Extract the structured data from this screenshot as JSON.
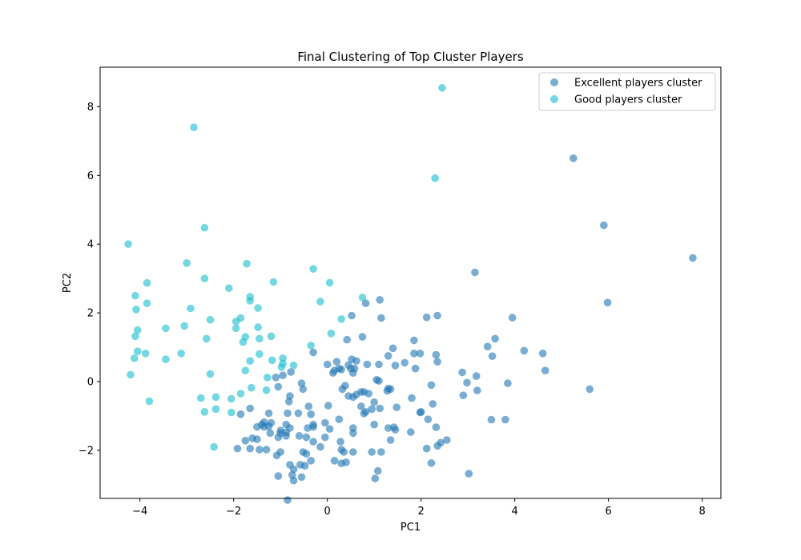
{
  "chart_data": {
    "type": "scatter",
    "title": "Final Clustering of Top Cluster Players",
    "xlabel": "PC1",
    "ylabel": "PC2",
    "xlim": [
      -4.85,
      8.4
    ],
    "ylim": [
      -3.4,
      9.15
    ],
    "xticks": [
      -4,
      -2,
      0,
      2,
      4,
      6,
      8
    ],
    "yticks": [
      -2,
      0,
      2,
      4,
      6,
      8
    ],
    "xtick_labels": [
      "−4",
      "−2",
      "0",
      "2",
      "4",
      "6",
      "8"
    ],
    "ytick_labels": [
      "−2",
      "0",
      "2",
      "4",
      "6",
      "8"
    ],
    "grid": false,
    "legend_position": "upper right",
    "series": [
      {
        "name": "Excellent players cluster",
        "color": "#1f77b4",
        "points": [
          [
            5.25,
            6.5
          ],
          [
            5.9,
            4.55
          ],
          [
            7.8,
            3.6
          ],
          [
            5.98,
            2.3
          ],
          [
            3.15,
            3.18
          ],
          [
            5.6,
            -0.22
          ],
          [
            4.6,
            0.82
          ],
          [
            4.65,
            0.32
          ],
          [
            4.2,
            0.9
          ],
          [
            3.95,
            1.86
          ],
          [
            3.58,
            1.25
          ],
          [
            3.42,
            1.02
          ],
          [
            3.52,
            0.74
          ],
          [
            3.18,
            0.16
          ],
          [
            3.2,
            -0.26
          ],
          [
            2.98,
            -0.03
          ],
          [
            2.88,
            0.27
          ],
          [
            2.9,
            -0.4
          ],
          [
            3.85,
            -0.05
          ],
          [
            3.8,
            -1.11
          ],
          [
            3.5,
            -1.11
          ],
          [
            3.02,
            -2.68
          ],
          [
            2.35,
            1.92
          ],
          [
            2.12,
            1.87
          ],
          [
            2.32,
            0.78
          ],
          [
            2.35,
            0.58
          ],
          [
            2.22,
            -0.1
          ],
          [
            2.25,
            -0.65
          ],
          [
            2.15,
            -1.1
          ],
          [
            2.0,
            -0.88
          ],
          [
            1.98,
            -0.9
          ],
          [
            1.98,
            0.82
          ],
          [
            1.85,
            1.2
          ],
          [
            1.85,
            0.82
          ],
          [
            1.88,
            0.38
          ],
          [
            1.65,
            0.55
          ],
          [
            1.8,
            -0.48
          ],
          [
            1.78,
            -1.47
          ],
          [
            2.32,
            -1.33
          ],
          [
            2.12,
            -1.95
          ],
          [
            2.35,
            -1.87
          ],
          [
            2.42,
            -1.78
          ],
          [
            2.55,
            -1.7
          ],
          [
            2.22,
            -2.37
          ],
          [
            1.12,
            2.38
          ],
          [
            1.15,
            1.85
          ],
          [
            1.4,
            0.97
          ],
          [
            1.3,
            0.75
          ],
          [
            1.45,
            0.47
          ],
          [
            1.1,
            0.5
          ],
          [
            1.05,
            0.05
          ],
          [
            1.1,
            0.02
          ],
          [
            1.3,
            -0.2
          ],
          [
            1.35,
            -0.22
          ],
          [
            1.28,
            -0.27
          ],
          [
            1.48,
            -0.75
          ],
          [
            1.0,
            -0.6
          ],
          [
            0.95,
            -0.8
          ],
          [
            1.12,
            -0.78
          ],
          [
            1.3,
            -1.35
          ],
          [
            1.42,
            -1.33
          ],
          [
            1.45,
            -1.4
          ],
          [
            1.35,
            -1.7
          ],
          [
            1.0,
            -1.25
          ],
          [
            1.15,
            -2.05
          ],
          [
            1.08,
            -2.6
          ],
          [
            1.02,
            -2.82
          ],
          [
            0.82,
            2.28
          ],
          [
            0.75,
            1.3
          ],
          [
            0.42,
            1.22
          ],
          [
            0.52,
            0.65
          ],
          [
            0.62,
            0.6
          ],
          [
            0.85,
            0.5
          ],
          [
            0.45,
            0.48
          ],
          [
            0.5,
            0.38
          ],
          [
            0.58,
            0.38
          ],
          [
            0.55,
            0.25
          ],
          [
            0.3,
            0.35
          ],
          [
            0.25,
            0.38
          ],
          [
            0.2,
            0.58
          ],
          [
            0.15,
            0.32
          ],
          [
            0.12,
            0.25
          ],
          [
            0.38,
            -0.12
          ],
          [
            0.32,
            -0.22
          ],
          [
            0.45,
            -0.42
          ],
          [
            0.55,
            -0.45
          ],
          [
            0.62,
            -0.38
          ],
          [
            0.72,
            -0.3
          ],
          [
            0.78,
            -0.3
          ],
          [
            0.88,
            -0.35
          ],
          [
            0.72,
            -0.72
          ],
          [
            0.78,
            -0.93
          ],
          [
            0.82,
            -0.88
          ],
          [
            0.52,
            1.92
          ],
          [
            0.0,
            0.5
          ],
          [
            -0.3,
            0.85
          ],
          [
            0.02,
            -0.7
          ],
          [
            0.25,
            -1.1
          ],
          [
            -0.05,
            -1.2
          ],
          [
            0.05,
            -1.38
          ],
          [
            0.55,
            -1.35
          ],
          [
            0.55,
            -1.5
          ],
          [
            -0.05,
            -1.62
          ],
          [
            0.28,
            -1.75
          ],
          [
            -0.3,
            -1.75
          ],
          [
            -0.15,
            -1.9
          ],
          [
            0.3,
            -1.98
          ],
          [
            0.35,
            -2.05
          ],
          [
            0.55,
            -2.05
          ],
          [
            0.15,
            -2.3
          ],
          [
            0.3,
            -2.38
          ],
          [
            0.4,
            -2.35
          ],
          [
            0.95,
            -2.05
          ],
          [
            -0.4,
            -0.72
          ],
          [
            -0.35,
            -0.95
          ],
          [
            -0.8,
            -0.42
          ],
          [
            -0.82,
            -0.58
          ],
          [
            -0.62,
            -0.92
          ],
          [
            -0.3,
            -1.25
          ],
          [
            -0.3,
            -1.32
          ],
          [
            -0.42,
            -1.35
          ],
          [
            -0.45,
            -1.62
          ],
          [
            -0.6,
            -1.58
          ],
          [
            -0.52,
            -2.05
          ],
          [
            -0.45,
            -2.1
          ],
          [
            -0.35,
            -2.3
          ],
          [
            -0.48,
            -2.45
          ],
          [
            -0.58,
            -2.42
          ],
          [
            -0.72,
            -2.55
          ],
          [
            -0.55,
            -2.78
          ],
          [
            -0.75,
            -2.72
          ],
          [
            -0.72,
            -2.88
          ],
          [
            -0.8,
            -2.42
          ],
          [
            -0.85,
            -0.92
          ],
          [
            -0.8,
            -1.35
          ],
          [
            -0.88,
            -1.25
          ],
          [
            -1.0,
            -1.42
          ],
          [
            -1.0,
            -1.5
          ],
          [
            -0.88,
            -1.48
          ],
          [
            -0.88,
            -1.58
          ],
          [
            -1.05,
            -1.62
          ],
          [
            -1.0,
            -2.05
          ],
          [
            -1.08,
            -2.15
          ],
          [
            -1.05,
            -2.75
          ],
          [
            -0.85,
            -3.45
          ],
          [
            -0.78,
            0.28
          ],
          [
            -0.95,
            0.18
          ],
          [
            -1.1,
            0.12
          ],
          [
            -1.05,
            -0.15
          ],
          [
            -0.55,
            -0.05
          ],
          [
            -0.52,
            -0.22
          ],
          [
            -1.25,
            -0.92
          ],
          [
            -1.2,
            -1.2
          ],
          [
            -1.25,
            -1.3
          ],
          [
            -1.35,
            -1.32
          ],
          [
            -1.35,
            -1.18
          ],
          [
            -1.4,
            -1.25
          ],
          [
            -1.5,
            -1.32
          ],
          [
            -1.5,
            -1.68
          ],
          [
            -1.3,
            -1.98
          ],
          [
            -1.45,
            -1.98
          ],
          [
            -1.65,
            -1.95
          ],
          [
            -1.75,
            -1.72
          ],
          [
            -1.65,
            -0.78
          ],
          [
            -1.85,
            -0.95
          ],
          [
            -1.92,
            -1.95
          ],
          [
            -1.6,
            -1.65
          ],
          [
            -1.22,
            -1.5
          ]
        ]
      },
      {
        "name": "Good players cluster",
        "color": "#17becf",
        "points": [
          [
            2.45,
            8.55
          ],
          [
            2.3,
            5.92
          ],
          [
            -2.85,
            7.4
          ],
          [
            -4.25,
            4.0
          ],
          [
            -2.62,
            4.48
          ],
          [
            -3.0,
            3.45
          ],
          [
            -1.72,
            3.43
          ],
          [
            -0.3,
            3.28
          ],
          [
            -2.62,
            3.0
          ],
          [
            -1.15,
            2.9
          ],
          [
            0.05,
            2.88
          ],
          [
            -2.1,
            2.72
          ],
          [
            -1.65,
            2.47
          ],
          [
            -1.65,
            2.35
          ],
          [
            -0.15,
            2.33
          ],
          [
            0.75,
            2.45
          ],
          [
            -3.85,
            2.87
          ],
          [
            -4.1,
            2.5
          ],
          [
            -3.85,
            2.28
          ],
          [
            -4.08,
            2.1
          ],
          [
            -2.92,
            2.13
          ],
          [
            -1.48,
            2.14
          ],
          [
            -1.85,
            1.85
          ],
          [
            -1.95,
            1.75
          ],
          [
            -2.5,
            1.8
          ],
          [
            -3.05,
            1.62
          ],
          [
            -3.45,
            1.55
          ],
          [
            -4.05,
            1.5
          ],
          [
            -4.1,
            1.32
          ],
          [
            -1.95,
            1.55
          ],
          [
            -1.48,
            1.58
          ],
          [
            -1.75,
            1.3
          ],
          [
            -1.8,
            1.15
          ],
          [
            -1.45,
            1.25
          ],
          [
            -1.2,
            1.32
          ],
          [
            0.08,
            1.4
          ],
          [
            0.3,
            1.82
          ],
          [
            -0.35,
            1.05
          ],
          [
            -2.58,
            1.25
          ],
          [
            -3.88,
            0.82
          ],
          [
            -4.05,
            0.88
          ],
          [
            -4.12,
            0.68
          ],
          [
            -3.45,
            0.65
          ],
          [
            -3.12,
            0.82
          ],
          [
            -1.45,
            0.8
          ],
          [
            -1.65,
            0.6
          ],
          [
            -1.18,
            0.62
          ],
          [
            -0.95,
            0.68
          ],
          [
            -0.95,
            0.52
          ],
          [
            -0.98,
            0.42
          ],
          [
            -0.72,
            0.47
          ],
          [
            -1.75,
            0.32
          ],
          [
            -1.28,
            0.12
          ],
          [
            -4.2,
            0.2
          ],
          [
            -2.5,
            0.22
          ],
          [
            -1.62,
            -0.18
          ],
          [
            -1.85,
            -0.35
          ],
          [
            -1.3,
            -0.25
          ],
          [
            -2.05,
            -0.5
          ],
          [
            -2.38,
            -0.45
          ],
          [
            -2.7,
            -0.48
          ],
          [
            -3.8,
            -0.57
          ],
          [
            -2.38,
            -0.8
          ],
          [
            -2.62,
            -0.88
          ],
          [
            -2.05,
            -0.9
          ],
          [
            -2.42,
            -1.9
          ]
        ]
      }
    ]
  }
}
